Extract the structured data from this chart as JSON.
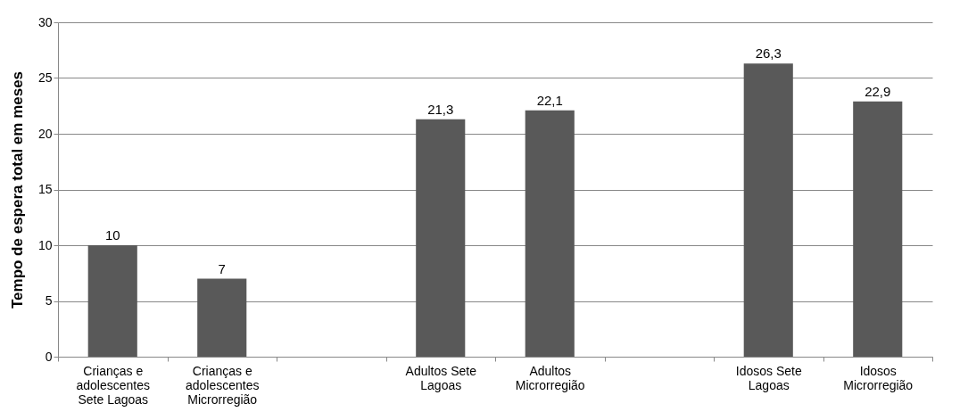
{
  "chart_data": {
    "type": "bar",
    "ylabel": "Tempo de espera total em meses",
    "categories": [
      "Crianças e adolescentes Sete Lagoas",
      "Crianças e adolescentes Microrregião",
      null,
      "Adultos Sete Lagoas",
      "Adultos Microrregião",
      null,
      "Idosos Sete Lagoas",
      "Idosos Microrregião"
    ],
    "values": [
      10,
      7,
      null,
      21.3,
      22.1,
      null,
      26.3,
      22.9
    ],
    "value_labels": [
      "10",
      "7",
      null,
      "21,3",
      "22,1",
      null,
      "26,3",
      "22,9"
    ],
    "color": "#595959",
    "ylim": [
      0,
      30
    ],
    "yticks": [
      0,
      5,
      10,
      15,
      20,
      25,
      30
    ],
    "grid": "y"
  }
}
